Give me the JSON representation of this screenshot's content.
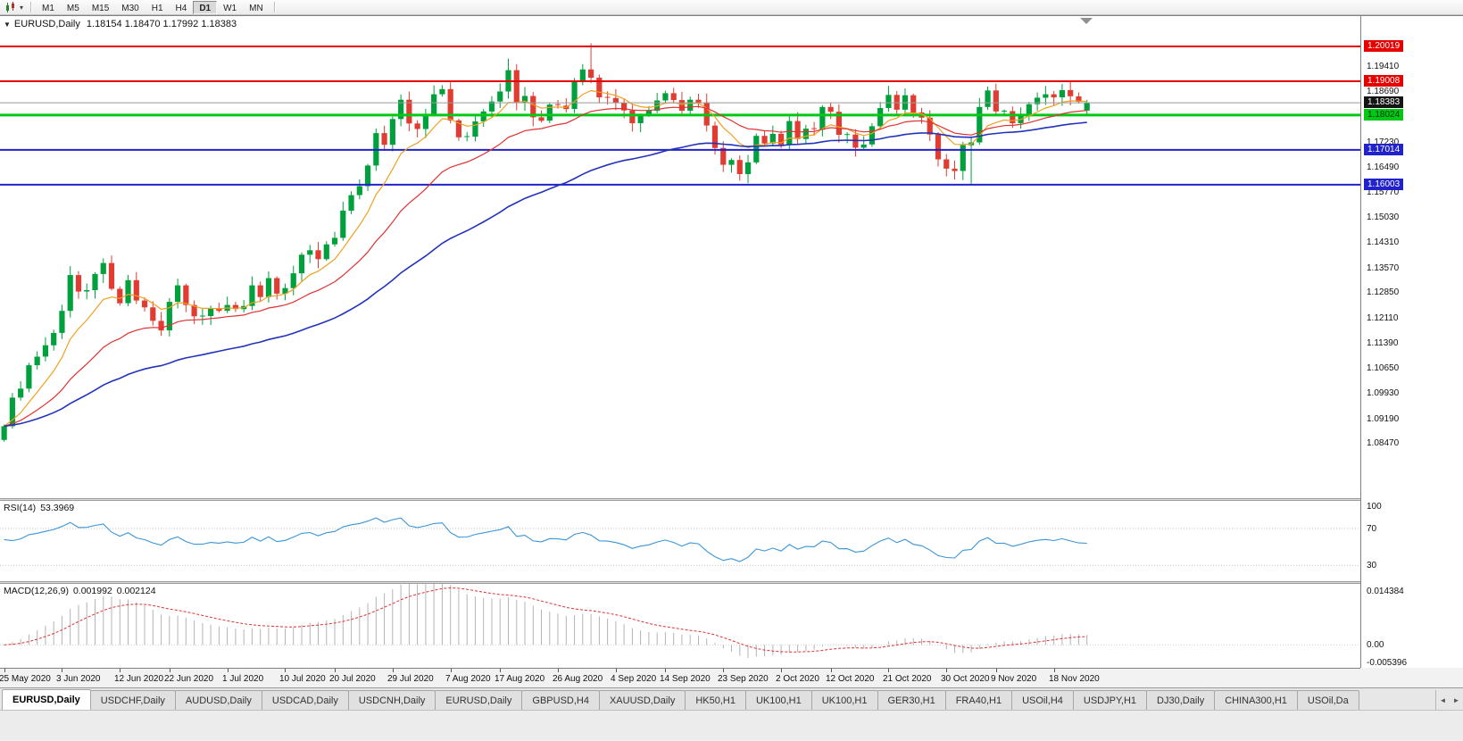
{
  "icons": {
    "collapse": "▼",
    "dropdown": "▾",
    "tab_left": "◄",
    "tab_right": "►"
  },
  "toolbar": {
    "timeframes": [
      "M1",
      "M5",
      "M15",
      "M30",
      "H1",
      "H4",
      "D1",
      "W1",
      "MN"
    ],
    "active_timeframe": "D1"
  },
  "chart": {
    "symbol_period": "EURUSD,Daily",
    "ohlc_text": "1.18154 1.18470 1.17992 1.18383"
  },
  "price_scale": {
    "gridline_labels": [
      "1.19410",
      "1.18690",
      "1.17230",
      "1.16490",
      "1.15770",
      "1.15030",
      "1.14310",
      "1.13570",
      "1.12850",
      "1.12110",
      "1.11390",
      "1.10650",
      "1.09930",
      "1.09190",
      "1.08470"
    ],
    "badges": [
      {
        "text": "1.20019",
        "bg": "#e60000",
        "fg": "#ffffff"
      },
      {
        "text": "1.19008",
        "bg": "#e60000",
        "fg": "#ffffff"
      },
      {
        "text": "1.18383",
        "bg": "#141414",
        "fg": "#ffffff"
      },
      {
        "text": "1.18024",
        "bg": "#00c814",
        "fg": "#00320a"
      },
      {
        "text": "1.17014",
        "bg": "#2222cc",
        "fg": "#ffffff"
      },
      {
        "text": "1.16003",
        "bg": "#2222cc",
        "fg": "#ffffff"
      }
    ]
  },
  "levels": [
    {
      "price": 1.20019,
      "color": "#e60000",
      "width": 2
    },
    {
      "price": 1.19008,
      "color": "#e60000",
      "width": 2
    },
    {
      "price": 1.18024,
      "color": "#00c814",
      "width": 3
    },
    {
      "price": 1.17014,
      "color": "#2222cc",
      "width": 2
    },
    {
      "price": 1.16003,
      "color": "#2222cc",
      "width": 2
    }
  ],
  "rsi": {
    "label": "RSI(14)",
    "value": "53.3969",
    "scale_labels": [
      "100",
      "70",
      "30"
    ],
    "level_lines": [
      70,
      30
    ],
    "line_color": "#3a95d8",
    "display_range": [
      13,
      100
    ]
  },
  "macd": {
    "label": "MACD(12,26,9)",
    "value_main": "0.001992",
    "value_signal": "0.002124",
    "scale_top": "0.014384",
    "scale_zero": "0.00",
    "scale_bottom": "-0.005396",
    "range": [
      -0.005396,
      0.014384
    ],
    "hist_color": "#b3b3b3",
    "signal_color": "#e03131"
  },
  "tabs": {
    "items": [
      "EURUSD,Daily",
      "USDCHF,Daily",
      "AUDUSD,Daily",
      "USDCAD,Daily",
      "USDCNH,Daily",
      "EURUSD,Daily",
      "GBPUSD,H4",
      "XAUUSD,Daily",
      "HK50,H1",
      "UK100,H1",
      "UK100,H1",
      "GER30,H1",
      "FRA40,H1",
      "USOil,H4",
      "USDJPY,H1",
      "DJ30,Daily",
      "CHINA300,H1",
      "USOil,Da"
    ],
    "active_index": 0
  },
  "chart_data": {
    "type": "candlestick",
    "title": "EURUSD Daily",
    "bid": 1.18383,
    "y_range": [
      1.069,
      1.209
    ],
    "up_color": "#00a03c",
    "down_color": "#e03c31",
    "closes": [
      1.0899,
      1.0982,
      1.1008,
      1.1076,
      1.1101,
      1.1134,
      1.117,
      1.1234,
      1.1338,
      1.129,
      1.1294,
      1.1341,
      1.1373,
      1.1298,
      1.1256,
      1.1323,
      1.1264,
      1.1244,
      1.1205,
      1.1177,
      1.126,
      1.1308,
      1.1251,
      1.1218,
      1.1219,
      1.1242,
      1.1234,
      1.1251,
      1.1239,
      1.1248,
      1.1308,
      1.1274,
      1.1329,
      1.1284,
      1.13,
      1.1343,
      1.1397,
      1.141,
      1.1384,
      1.1427,
      1.1446,
      1.1525,
      1.157,
      1.1596,
      1.1656,
      1.175,
      1.1716,
      1.1791,
      1.1847,
      1.1778,
      1.1762,
      1.1803,
      1.1863,
      1.1878,
      1.1787,
      1.1738,
      1.174,
      1.1784,
      1.1813,
      1.1842,
      1.1871,
      1.1933,
      1.1839,
      1.1858,
      1.1796,
      1.1786,
      1.1833,
      1.183,
      1.182,
      1.1903,
      1.1935,
      1.1911,
      1.1854,
      1.1852,
      1.1838,
      1.1816,
      1.1779,
      1.1802,
      1.1815,
      1.1845,
      1.1866,
      1.1846,
      1.1815,
      1.1847,
      1.1839,
      1.1772,
      1.1707,
      1.1658,
      1.1672,
      1.1631,
      1.1665,
      1.1742,
      1.172,
      1.1748,
      1.1716,
      1.1785,
      1.1733,
      1.1763,
      1.176,
      1.1826,
      1.1812,
      1.1745,
      1.1746,
      1.1708,
      1.1717,
      1.177,
      1.1823,
      1.1861,
      1.1818,
      1.186,
      1.181,
      1.1795,
      1.1746,
      1.1674,
      1.1647,
      1.164,
      1.1715,
      1.1723,
      1.1826,
      1.1874,
      1.1813,
      1.1814,
      1.1779,
      1.1803,
      1.1834,
      1.1853,
      1.1863,
      1.1854,
      1.1875,
      1.1857,
      1.1841,
      1.18383
    ],
    "last_bar": {
      "open": 1.18154,
      "high": 1.1847,
      "low": 1.17992,
      "close": 1.18383
    },
    "wick_overrides": {
      "61": {
        "high": 1.1966
      },
      "71": {
        "high": 1.2011
      },
      "89": {
        "low": 1.1612
      },
      "117": {
        "low": 1.1603
      }
    },
    "moving_averages": [
      {
        "type": "EMA",
        "period": 8,
        "color": "#f0a020"
      },
      {
        "type": "EMA",
        "period": 21,
        "color": "#e03131"
      },
      {
        "type": "EMA",
        "period": 50,
        "color": "#2233bb"
      }
    ],
    "indicators": {
      "rsi": {
        "period": 14,
        "last_value": 53.3969
      },
      "macd": {
        "fast": 12,
        "slow": 26,
        "signal": 9,
        "last_main": 0.001992,
        "last_signal": 0.002124
      }
    },
    "x_ticks": [
      [
        0,
        "25 May 2020"
      ],
      [
        7,
        "3 Jun 2020"
      ],
      [
        14,
        "12 Jun 2020"
      ],
      [
        20,
        "22 Jun 2020"
      ],
      [
        27,
        "1 Jul 2020"
      ],
      [
        34,
        "10 Jul 2020"
      ],
      [
        40,
        "20 Jul 2020"
      ],
      [
        47,
        "29 Jul 2020"
      ],
      [
        54,
        "7 Aug 2020"
      ],
      [
        60,
        "17 Aug 2020"
      ],
      [
        67,
        "26 Aug 2020"
      ],
      [
        74,
        "4 Sep 2020"
      ],
      [
        80,
        "14 Sep 2020"
      ],
      [
        87,
        "23 Sep 2020"
      ],
      [
        94,
        "2 Oct 2020"
      ],
      [
        100,
        "12 Oct 2020"
      ],
      [
        107,
        "21 Oct 2020"
      ],
      [
        114,
        "30 Oct 2020"
      ],
      [
        120,
        "9 Nov 2020"
      ],
      [
        127,
        "18 Nov 2020"
      ]
    ]
  }
}
